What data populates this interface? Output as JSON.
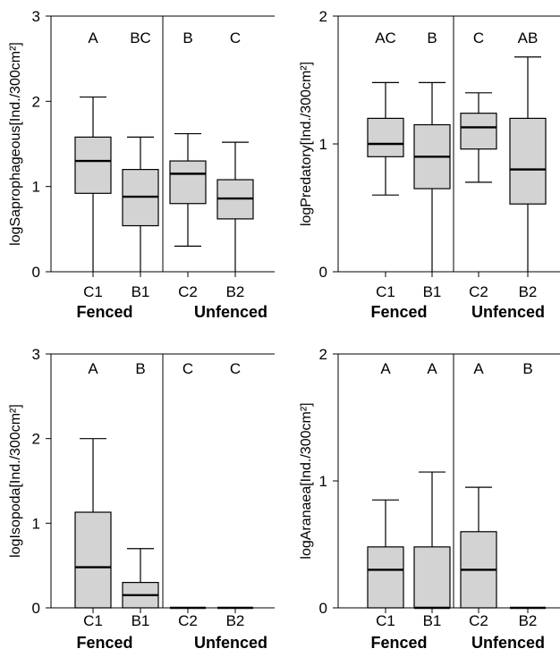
{
  "chart_data": [
    {
      "type": "box",
      "ylabel": "logSaprophageous[Ind./300cm²]",
      "ylim": [
        0,
        3
      ],
      "yticks": [
        0,
        1,
        2,
        3
      ],
      "groups": [
        "Fenced",
        "Unfenced"
      ],
      "categories": [
        "C1",
        "B1",
        "C2",
        "B2"
      ],
      "letters": [
        "A",
        "BC",
        "B",
        "C"
      ],
      "boxes": [
        {
          "min": 0.0,
          "q1": 0.92,
          "median": 1.3,
          "q3": 1.58,
          "max": 2.05
        },
        {
          "min": 0.0,
          "q1": 0.54,
          "median": 0.88,
          "q3": 1.2,
          "max": 1.58
        },
        {
          "min": 0.3,
          "q1": 0.8,
          "median": 1.15,
          "q3": 1.3,
          "max": 1.62
        },
        {
          "min": 0.0,
          "q1": 0.62,
          "median": 0.86,
          "q3": 1.08,
          "max": 1.52
        }
      ]
    },
    {
      "type": "box",
      "ylabel": "logPredatory[Ind./300cm²]",
      "ylim": [
        0,
        2
      ],
      "yticks": [
        0,
        1,
        2
      ],
      "groups": [
        "Fenced",
        "Unfenced"
      ],
      "categories": [
        "C1",
        "B1",
        "C2",
        "B2"
      ],
      "letters": [
        "AC",
        "B",
        "C",
        "AB"
      ],
      "boxes": [
        {
          "min": 0.6,
          "q1": 0.9,
          "median": 1.0,
          "q3": 1.2,
          "max": 1.48
        },
        {
          "min": 0.0,
          "q1": 0.65,
          "median": 0.9,
          "q3": 1.15,
          "max": 1.48
        },
        {
          "min": 0.7,
          "q1": 0.96,
          "median": 1.13,
          "q3": 1.24,
          "max": 1.4
        },
        {
          "min": 0.0,
          "q1": 0.53,
          "median": 0.8,
          "q3": 1.2,
          "max": 1.68
        }
      ]
    },
    {
      "type": "box",
      "ylabel": "logIsopoda[Ind./300cm²]",
      "ylim": [
        0,
        3
      ],
      "yticks": [
        0,
        1,
        2,
        3
      ],
      "groups": [
        "Fenced",
        "Unfenced"
      ],
      "categories": [
        "C1",
        "B1",
        "C2",
        "B2"
      ],
      "letters": [
        "A",
        "B",
        "C",
        "C"
      ],
      "boxes": [
        {
          "min": 0.0,
          "q1": 0.0,
          "median": 0.48,
          "q3": 1.13,
          "max": 2.0
        },
        {
          "min": 0.0,
          "q1": 0.0,
          "median": 0.15,
          "q3": 0.3,
          "max": 0.7
        },
        {
          "min": 0.0,
          "q1": 0.0,
          "median": 0.0,
          "q3": 0.0,
          "max": 0.0
        },
        {
          "min": 0.0,
          "q1": 0.0,
          "median": 0.0,
          "q3": 0.0,
          "max": 0.0
        }
      ]
    },
    {
      "type": "box",
      "ylabel": "logAranaea[Ind./300cm²]",
      "ylim": [
        0,
        2
      ],
      "yticks": [
        0,
        1,
        2
      ],
      "groups": [
        "Fenced",
        "Unfenced"
      ],
      "categories": [
        "C1",
        "B1",
        "C2",
        "B2"
      ],
      "letters": [
        "A",
        "A",
        "A",
        "B"
      ],
      "boxes": [
        {
          "min": 0.0,
          "q1": 0.0,
          "median": 0.3,
          "q3": 0.48,
          "max": 0.85
        },
        {
          "min": 0.0,
          "q1": 0.0,
          "median": 0.0,
          "q3": 0.48,
          "max": 1.07
        },
        {
          "min": 0.0,
          "q1": 0.0,
          "median": 0.3,
          "q3": 0.6,
          "max": 0.95
        },
        {
          "min": 0.0,
          "q1": 0.0,
          "median": 0.0,
          "q3": 0.0,
          "max": 0.0
        }
      ]
    }
  ]
}
